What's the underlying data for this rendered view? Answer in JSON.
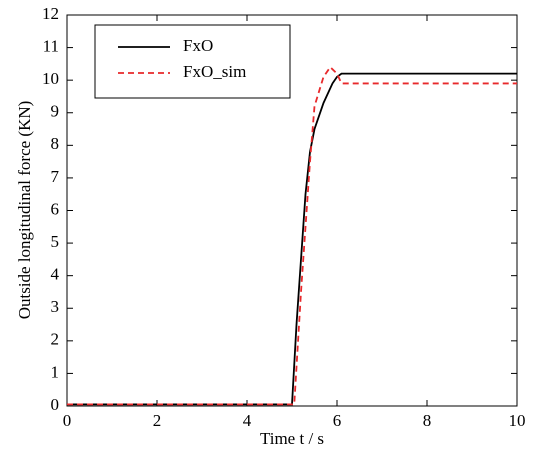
{
  "chart_data": {
    "type": "line",
    "x_label": "Time t / s",
    "y_label": "Outside longitudinal force (KN)",
    "xlim": [
      0,
      10
    ],
    "xticks": [
      0,
      2,
      4,
      6,
      8,
      10
    ],
    "ylim": [
      0,
      12
    ],
    "yticks": [
      0,
      1,
      2,
      3,
      4,
      5,
      6,
      7,
      8,
      9,
      10,
      11,
      12
    ],
    "legend": "upper left",
    "series": [
      {
        "name": "FxO",
        "color": "#000000",
        "style": "solid",
        "x": [
          0,
          5.0,
          5.1,
          5.2,
          5.3,
          5.4,
          5.5,
          5.7,
          5.9,
          6.0,
          6.1,
          10
        ],
        "values": [
          0.05,
          0.05,
          2.5,
          4.5,
          6.5,
          7.8,
          8.5,
          9.3,
          9.9,
          10.1,
          10.2,
          10.2
        ]
      },
      {
        "name": "FxO_sim",
        "color": "#e8292b",
        "style": "dashed",
        "x": [
          0,
          5.05,
          5.2,
          5.4,
          5.5,
          5.7,
          5.85,
          6.0,
          6.1,
          10
        ],
        "values": [
          0.05,
          0.05,
          3.5,
          7.5,
          9.2,
          10.1,
          10.4,
          10.2,
          9.9,
          9.9
        ]
      }
    ]
  }
}
